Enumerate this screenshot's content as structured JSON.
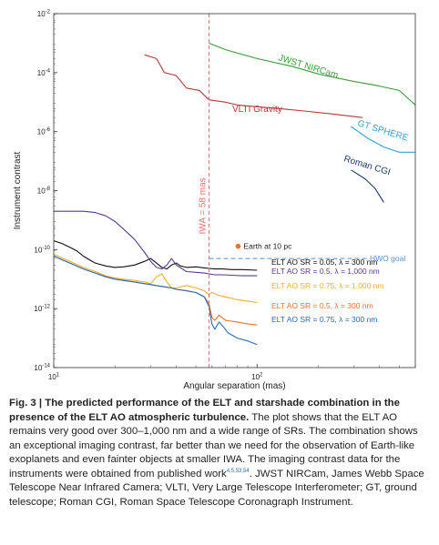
{
  "chart_data": {
    "type": "line",
    "x_scale": "log",
    "y_scale": "log",
    "xlim": [
      10,
      600
    ],
    "ylim": [
      1e-14,
      0.01
    ],
    "xlabel": "Angular separation (mas)",
    "ylabel": "Instrument contrast",
    "x_ticks": [
      {
        "value": 10,
        "label": "10",
        "sup": "1"
      },
      {
        "value": 100,
        "label": "10",
        "sup": "2"
      }
    ],
    "y_ticks": [
      {
        "value": 1e-14,
        "label": "10",
        "sup": "-14"
      },
      {
        "value": 1e-12,
        "label": "10",
        "sup": "-12"
      },
      {
        "value": 1e-10,
        "label": "10",
        "sup": "-10"
      },
      {
        "value": 1e-08,
        "label": "10",
        "sup": "-8"
      },
      {
        "value": 1e-06,
        "label": "10",
        "sup": "-6"
      },
      {
        "value": 0.0001,
        "label": "10",
        "sup": "-4"
      },
      {
        "value": 0.01,
        "label": "10",
        "sup": "-2"
      }
    ],
    "iwa": {
      "x": 58,
      "label": "IWA = 58 mas",
      "color": "#e07070"
    },
    "hwo": {
      "y": 5e-11,
      "x_start": 58,
      "label": "HWO goal",
      "color": "#5a8fd0"
    },
    "earth": {
      "x": 58,
      "y": 1.3e-10,
      "label": "Earth at 10 pc",
      "color": "#e8732a"
    },
    "instruments": [
      {
        "name": "JWST NIRCam",
        "color": "#3a9a3a",
        "x": [
          58,
          70,
          100,
          150,
          200,
          300,
          400,
          500,
          600
        ],
        "y": [
          0.001,
          0.0006,
          0.0003,
          0.00016,
          9e-05,
          5e-05,
          3.5e-05,
          2.5e-05,
          8e-06
        ]
      },
      {
        "name": "VLTI Gravity",
        "color": "#b03a3a",
        "x": [
          28,
          32,
          35,
          40,
          45,
          52,
          58,
          70,
          80,
          100,
          130,
          170,
          230,
          330
        ],
        "y": [
          0.0004,
          0.0003,
          0.0001,
          8e-05,
          3e-05,
          2.5e-05,
          1.2e-05,
          1e-05,
          8e-06,
          7e-06,
          6e-06,
          5e-06,
          4e-06,
          3e-06
        ]
      },
      {
        "name": "GT SPHERE",
        "color": "#3aa0c8",
        "x": [
          290,
          350,
          420,
          500,
          600
        ],
        "y": [
          1.5e-06,
          6e-07,
          3e-07,
          2e-07,
          2e-07
        ]
      },
      {
        "name": "Roman CGI",
        "color": "#1a3a6a",
        "x": [
          290,
          340,
          380,
          420
        ],
        "y": [
          5e-08,
          2.5e-08,
          1.2e-08,
          4e-09
        ]
      }
    ],
    "ao_series": [
      {
        "name": "ELT AO SR = 0.05, λ = 300 nm",
        "color": "#111111",
        "x": [
          10,
          11,
          12,
          13,
          14,
          15,
          16,
          18,
          20,
          22,
          25,
          28,
          30,
          32,
          34,
          36,
          38,
          40,
          42,
          45,
          50,
          55,
          58,
          62,
          68,
          75,
          85,
          100
        ],
        "y": [
          2e-10,
          1.6e-10,
          1.2e-10,
          9e-11,
          6e-11,
          4.5e-11,
          3.5e-11,
          2.8e-11,
          2.5e-11,
          2.6e-11,
          3e-11,
          4e-11,
          5e-11,
          3.5e-11,
          2.5e-11,
          2.2e-11,
          3e-11,
          3.5e-11,
          2.8e-11,
          2.5e-11,
          2.6e-11,
          2.4e-11,
          2.3e-11,
          2.2e-11,
          2.2e-11,
          2.1e-11,
          2.1e-11,
          2e-11
        ]
      },
      {
        "name": "ELT AO SR = 0.5, λ = 1,000 nm",
        "color": "#5a3a8a",
        "x": [
          10,
          12,
          14,
          16,
          18,
          20,
          22,
          25,
          28,
          30,
          32,
          34,
          36,
          38,
          40,
          45,
          50,
          55,
          58,
          62,
          68,
          75,
          85,
          100
        ],
        "y": [
          2e-09,
          2e-09,
          2e-09,
          1.8e-09,
          1.4e-09,
          9e-10,
          5e-10,
          2.2e-10,
          8e-11,
          4e-11,
          2.5e-11,
          2.2e-11,
          3e-11,
          5e-11,
          3e-11,
          1.8e-11,
          1.7e-11,
          1.6e-11,
          1.5e-11,
          1.4e-11,
          1.4e-11,
          1.35e-11,
          1.3e-11,
          1.3e-11
        ]
      },
      {
        "name": "ELT AO SR = 0.75, λ = 1,000 nm",
        "color": "#e8b030",
        "x": [
          10,
          12,
          14,
          16,
          18,
          20,
          22,
          25,
          28,
          30,
          32,
          34,
          36,
          38,
          40,
          45,
          50,
          55,
          58,
          60,
          65,
          70,
          80,
          90,
          100
        ],
        "y": [
          7e-11,
          4e-11,
          2.5e-11,
          1.8e-11,
          1.3e-11,
          1.1e-11,
          1e-11,
          9e-12,
          8e-12,
          7e-12,
          1.2e-11,
          1.5e-11,
          8e-12,
          5e-12,
          5e-12,
          6e-12,
          5e-12,
          4e-12,
          3e-12,
          3.5e-12,
          2.8e-12,
          2.5e-12,
          2e-12,
          1.8e-12,
          1.6e-12
        ]
      },
      {
        "name": "ELT AO SR = 0.5, λ = 300 nm",
        "color": "#e8732a",
        "x": [
          10,
          12,
          14,
          16,
          18,
          20,
          22,
          25,
          28,
          30,
          32,
          35,
          38,
          40,
          45,
          50,
          55,
          58,
          60,
          62,
          65,
          70,
          80,
          90,
          100
        ],
        "y": [
          6e-11,
          3.5e-11,
          2.2e-11,
          1.6e-11,
          1.2e-11,
          1e-11,
          9e-12,
          8e-12,
          7e-12,
          6.5e-12,
          6e-12,
          5.5e-12,
          5e-12,
          4.5e-12,
          4e-12,
          3.5e-12,
          2.5e-12,
          1.5e-12,
          5e-13,
          4e-13,
          6e-13,
          4e-13,
          3.5e-13,
          3e-13,
          2.8e-13
        ]
      },
      {
        "name": "ELT AO SR = 0.75, λ = 300 nm",
        "color": "#2a6ab0",
        "x": [
          10,
          12,
          14,
          16,
          18,
          20,
          22,
          25,
          28,
          30,
          32,
          35,
          38,
          40,
          45,
          50,
          55,
          58,
          60,
          62,
          65,
          68,
          72,
          80,
          90,
          100
        ],
        "y": [
          6e-11,
          3.5e-11,
          2.2e-11,
          1.6e-11,
          1.2e-11,
          1e-11,
          9e-12,
          8e-12,
          7e-12,
          6.5e-12,
          6e-12,
          5.5e-12,
          5e-12,
          4.5e-12,
          4e-12,
          3.5e-12,
          2.5e-12,
          1.2e-12,
          3e-13,
          2e-13,
          3.5e-13,
          2.5e-13,
          1.5e-13,
          1e-13,
          8e-14,
          6e-14
        ]
      }
    ],
    "labels": [
      {
        "key": "JWST NIRCam",
        "text": "JWST NIRCam",
        "color": "#3a9a3a",
        "rot": 17
      },
      {
        "key": "VLTI Gravity",
        "text": "VLTI Gravity",
        "color": "#b03a3a",
        "rot": 0
      },
      {
        "key": "GT SPHERE",
        "text": "GT SPHERE",
        "color": "#3aa0c8",
        "rot": 17
      },
      {
        "key": "Roman CGI",
        "text": "Roman CGI",
        "color": "#1a3a6a",
        "rot": 17
      }
    ]
  },
  "caption": {
    "title": "Fig. 3 | The predicted performance of the ELT and starshade combination in the presence of the ELT AO atmospheric turbulence.",
    "body_1": " The plot shows that the ELT AO remains very good over 300–1,000 nm and a wide range of SRs. The combination shows an exceptional imaging contrast, far better than we need for the observation of Earth-like exoplanets and even fainter objects at smaller IWA. The imaging contrast data for the instruments were obtained from published work",
    "refs": "4,5,53,54",
    "body_2": ". JWST NIRCam, James Webb Space Telescope Near Infrared Camera; VLTI, Very Large Telescope Interferometer; GT, ground telescope; Roman CGI, Roman Space Telescope Coronagraph Instrument."
  }
}
